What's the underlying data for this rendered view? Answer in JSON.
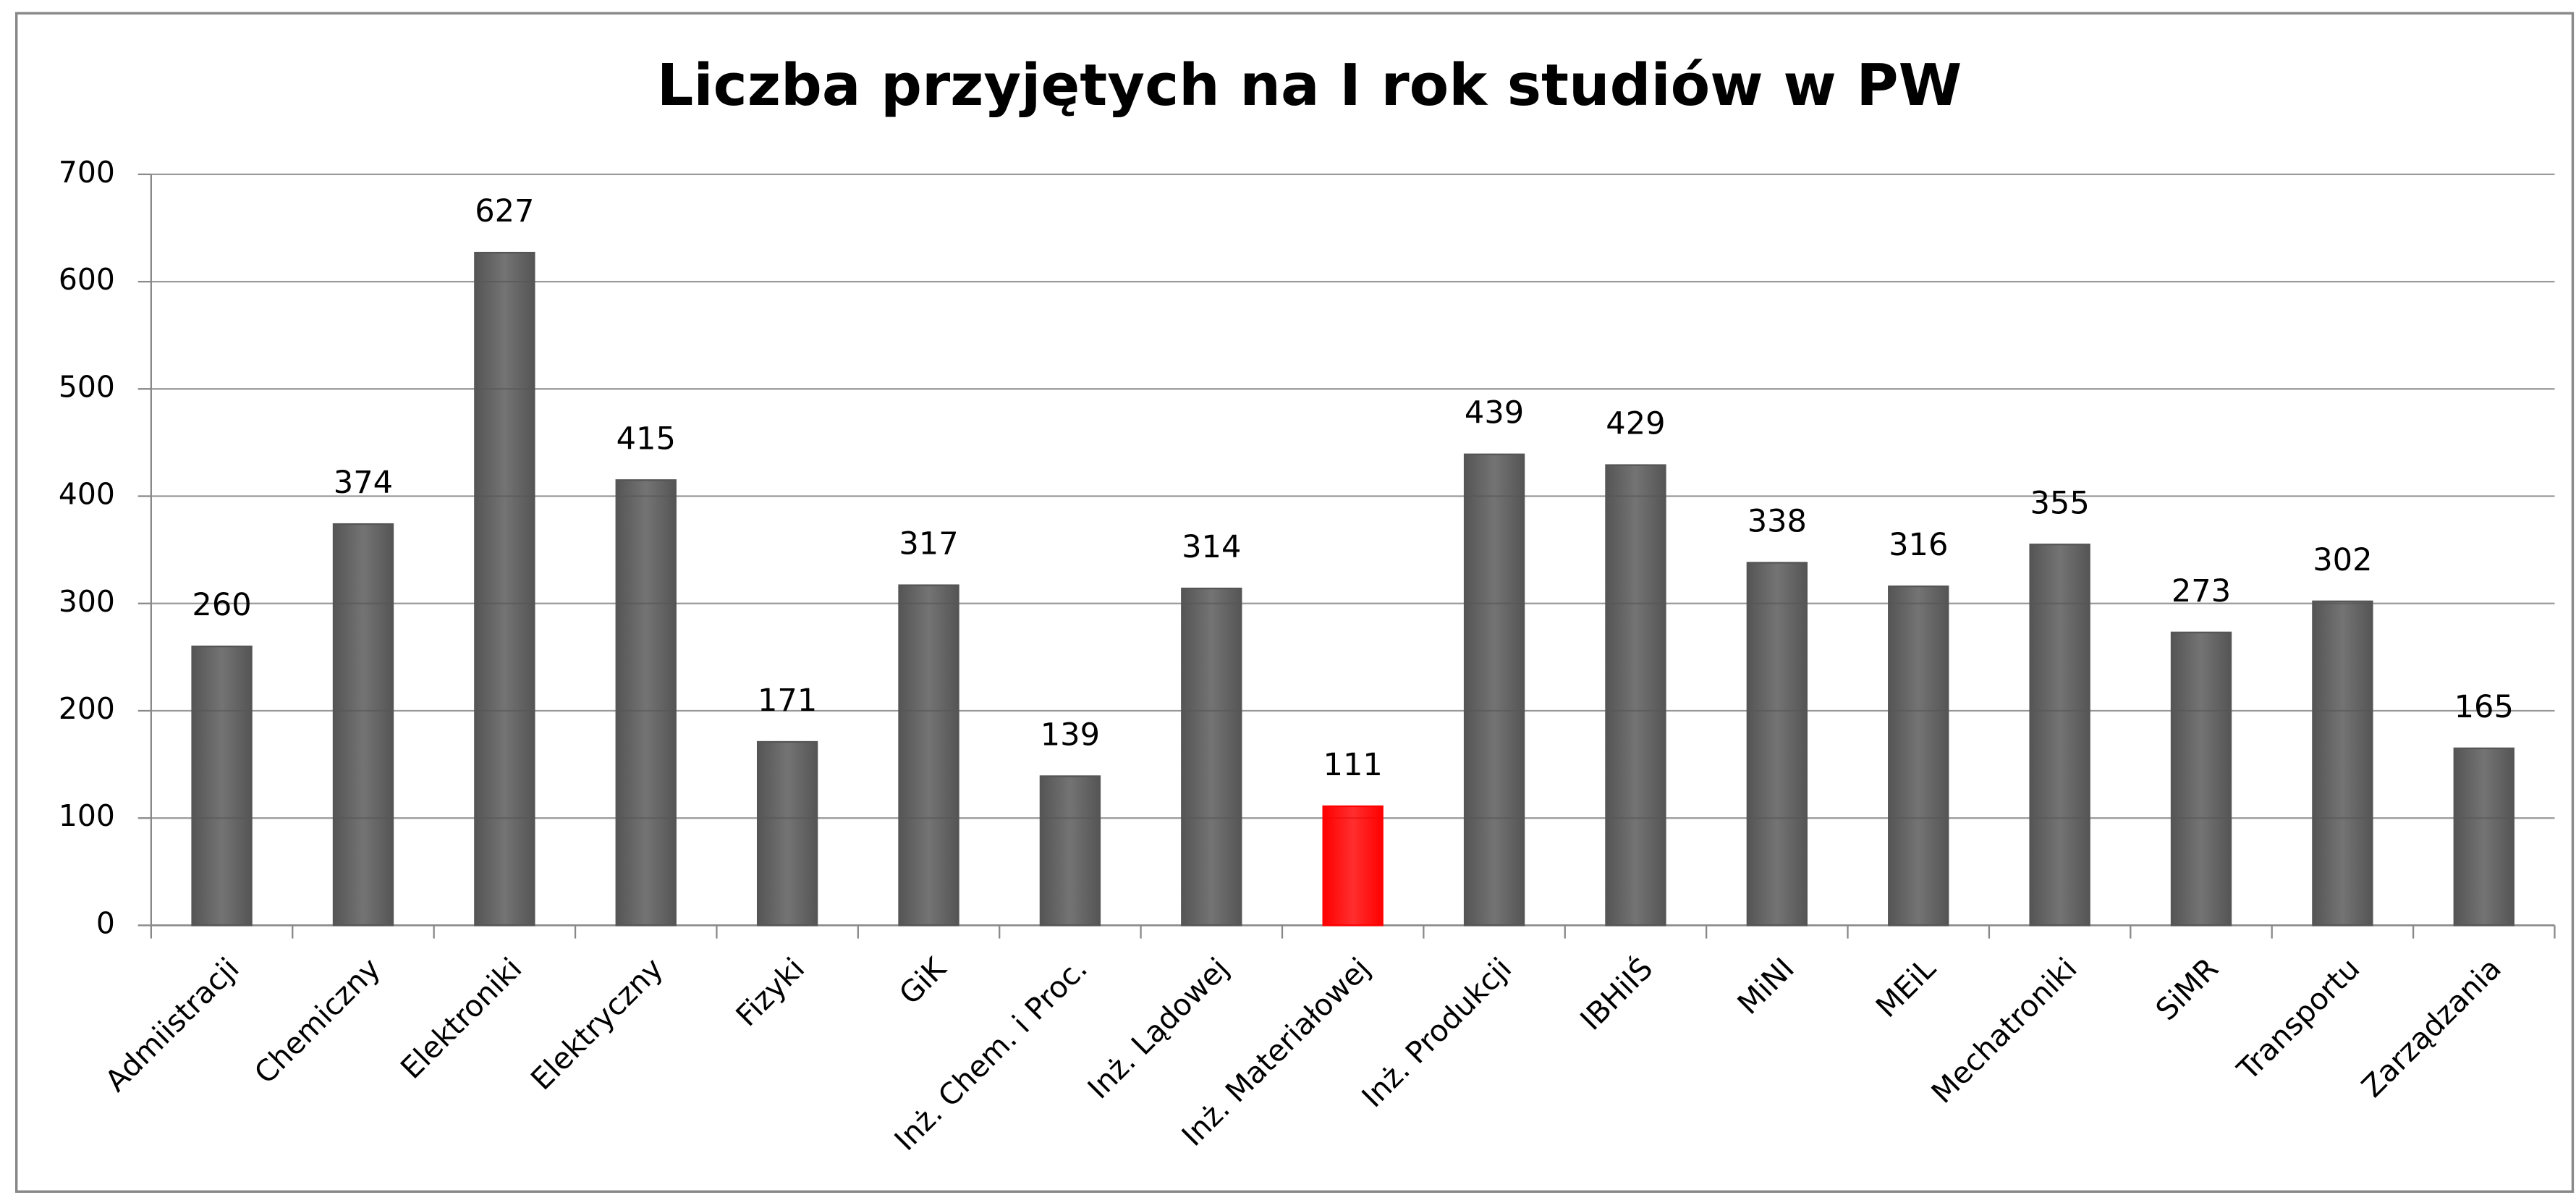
{
  "chart_data": {
    "type": "bar",
    "title": "Liczba przyjętych na I rok studiów w PW",
    "categories": [
      "Admiistracji",
      "Chemiczny",
      "Elektroniki",
      "Elektryczny",
      "Fizyki",
      "GiK",
      "Inż. Chem. i Proc.",
      "Inż. Lądowej",
      "Inż. Materiałowej",
      "Inż. Produkcji",
      "IBHiIŚ",
      "MiNI",
      "MEiL",
      "Mechatroniki",
      "SiMR",
      "Transportu",
      "Zarządzania"
    ],
    "values": [
      260,
      374,
      627,
      415,
      171,
      317,
      139,
      314,
      111,
      439,
      429,
      338,
      316,
      355,
      273,
      302,
      165
    ],
    "colors": [
      "#555555",
      "#555555",
      "#555555",
      "#555555",
      "#555555",
      "#555555",
      "#555555",
      "#555555",
      "#ff0000",
      "#555555",
      "#555555",
      "#555555",
      "#555555",
      "#555555",
      "#555555",
      "#555555",
      "#555555"
    ],
    "ylim": [
      0,
      700
    ],
    "yticks": [
      0,
      100,
      200,
      300,
      400,
      500,
      600,
      700
    ],
    "grid": true
  }
}
